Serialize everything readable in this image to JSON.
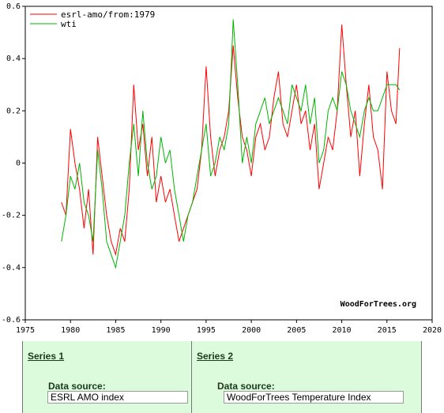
{
  "chart_data": {
    "type": "line",
    "title": "",
    "xlabel": "",
    "ylabel": "",
    "xlim": [
      1975,
      2020
    ],
    "ylim": [
      -0.6,
      0.6
    ],
    "x_ticks": [
      "1975",
      "1980",
      "1985",
      "1990",
      "1995",
      "2000",
      "2005",
      "2010",
      "2015",
      "2020"
    ],
    "y_ticks": [
      "0.6",
      "0.4",
      "0.2",
      "0",
      "-0.2",
      "-0.4",
      "-0.6"
    ],
    "grid": false,
    "legend_position": "top-left",
    "credit": "WoodForTrees.org",
    "series": [
      {
        "name": "esrl-amo/from:1979",
        "color": "#ff0000",
        "x": [
          1979.0,
          1979.5,
          1980.0,
          1980.5,
          1981.0,
          1981.5,
          1982.0,
          1982.5,
          1983.0,
          1983.5,
          1984.0,
          1984.5,
          1985.0,
          1985.5,
          1986.0,
          1986.5,
          1987.0,
          1987.5,
          1988.0,
          1988.5,
          1989.0,
          1989.5,
          1990.0,
          1990.5,
          1991.0,
          1991.5,
          1992.0,
          1992.5,
          1993.0,
          1993.5,
          1994.0,
          1994.5,
          1995.0,
          1995.5,
          1996.0,
          1996.5,
          1997.0,
          1997.5,
          1998.0,
          1998.5,
          1999.0,
          1999.5,
          2000.0,
          2000.5,
          2001.0,
          2001.5,
          2002.0,
          2002.5,
          2003.0,
          2003.5,
          2004.0,
          2004.5,
          2005.0,
          2005.5,
          2006.0,
          2006.5,
          2007.0,
          2007.5,
          2008.0,
          2008.5,
          2009.0,
          2009.5,
          2010.0,
          2010.5,
          2011.0,
          2011.5,
          2012.0,
          2012.5,
          2013.0,
          2013.5,
          2014.0,
          2014.5,
          2015.0,
          2015.5,
          2016.0,
          2016.4
        ],
        "values": [
          -0.15,
          -0.2,
          0.13,
          0.0,
          -0.1,
          -0.25,
          -0.1,
          -0.35,
          0.1,
          -0.05,
          -0.2,
          -0.3,
          -0.35,
          -0.25,
          -0.3,
          -0.1,
          0.3,
          0.05,
          0.15,
          -0.05,
          0.1,
          -0.15,
          -0.05,
          -0.15,
          -0.1,
          -0.2,
          -0.3,
          -0.25,
          -0.2,
          -0.15,
          -0.1,
          0.05,
          0.37,
          0.1,
          -0.05,
          0.05,
          0.1,
          0.2,
          0.45,
          0.25,
          0.1,
          0.05,
          -0.05,
          0.1,
          0.15,
          0.05,
          0.1,
          0.25,
          0.35,
          0.15,
          0.1,
          0.2,
          0.3,
          0.15,
          0.2,
          0.05,
          0.15,
          -0.1,
          0.0,
          0.1,
          0.05,
          0.2,
          0.53,
          0.3,
          0.1,
          0.2,
          -0.05,
          0.15,
          0.3,
          0.1,
          0.05,
          -0.1,
          0.35,
          0.2,
          0.15,
          0.44
        ]
      },
      {
        "name": "wti",
        "color": "#00b400",
        "x": [
          1979.0,
          1979.5,
          1980.0,
          1980.5,
          1981.0,
          1981.5,
          1982.0,
          1982.5,
          1983.0,
          1983.5,
          1984.0,
          1984.5,
          1985.0,
          1985.5,
          1986.0,
          1986.5,
          1987.0,
          1987.5,
          1988.0,
          1988.5,
          1989.0,
          1989.5,
          1990.0,
          1990.5,
          1991.0,
          1991.5,
          1992.0,
          1992.5,
          1993.0,
          1993.5,
          1994.0,
          1994.5,
          1995.0,
          1995.5,
          1996.0,
          1996.5,
          1997.0,
          1997.5,
          1998.0,
          1998.5,
          1999.0,
          1999.5,
          2000.0,
          2000.5,
          2001.0,
          2001.5,
          2002.0,
          2002.5,
          2003.0,
          2003.5,
          2004.0,
          2004.5,
          2005.0,
          2005.5,
          2006.0,
          2006.5,
          2007.0,
          2007.5,
          2008.0,
          2008.5,
          2009.0,
          2009.5,
          2010.0,
          2010.5,
          2011.0,
          2011.5,
          2012.0,
          2012.5,
          2013.0,
          2013.5,
          2014.0,
          2014.5,
          2015.0,
          2015.5,
          2016.0,
          2016.4
        ],
        "values": [
          -0.3,
          -0.2,
          -0.05,
          -0.1,
          0.0,
          -0.15,
          -0.2,
          -0.3,
          0.05,
          -0.1,
          -0.3,
          -0.35,
          -0.4,
          -0.3,
          -0.2,
          0.0,
          0.15,
          -0.05,
          0.2,
          0.0,
          -0.1,
          -0.05,
          0.1,
          0.0,
          0.05,
          -0.1,
          -0.2,
          -0.3,
          -0.2,
          -0.15,
          -0.05,
          0.05,
          0.15,
          -0.05,
          0.0,
          0.1,
          0.05,
          0.15,
          0.55,
          0.3,
          0.0,
          0.1,
          0.0,
          0.15,
          0.2,
          0.25,
          0.15,
          0.2,
          0.25,
          0.2,
          0.15,
          0.3,
          0.25,
          0.2,
          0.3,
          0.15,
          0.25,
          0.0,
          0.05,
          0.2,
          0.25,
          0.2,
          0.35,
          0.3,
          0.2,
          0.15,
          0.1,
          0.2,
          0.25,
          0.2,
          0.2,
          0.25,
          0.3,
          0.3,
          0.3,
          0.28
        ]
      }
    ]
  },
  "panels": {
    "series1": {
      "title": "Series 1",
      "data_source_label": "Data source:",
      "data_source_value": "ESRL AMO index"
    },
    "series2": {
      "title": "Series 2",
      "data_source_label": "Data source:",
      "data_source_value": "WoodForTrees Temperature Index"
    }
  }
}
